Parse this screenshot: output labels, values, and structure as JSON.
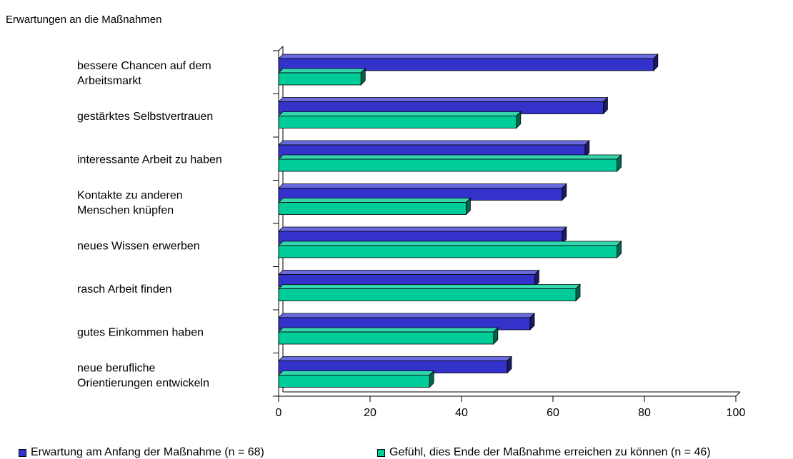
{
  "chart_data": {
    "type": "bar",
    "orientation": "horizontal",
    "title": "Erwartungen an die Maßnahmen",
    "categories": [
      [
        "bessere Chancen auf dem",
        "Arbeitsmarkt"
      ],
      [
        "gestärktes Selbstvertrauen"
      ],
      [
        "interessante Arbeit zu haben"
      ],
      [
        "Kontakte zu anderen",
        "Menschen knüpfen"
      ],
      [
        "neues Wissen erwerben"
      ],
      [
        "rasch Arbeit finden"
      ],
      [
        "gutes Einkommen haben"
      ],
      [
        "neue berufliche",
        "Orientierungen entwickeln"
      ]
    ],
    "series": [
      {
        "name": "Erwartung am Anfang der Maßnahme (n = 68)",
        "color": "#3333cc",
        "side_color": "#1a1a66",
        "top_color": "#6a6ae0",
        "values": [
          82,
          71,
          67,
          62,
          62,
          56,
          55,
          50
        ]
      },
      {
        "name": "Gefühl, dies Ende der Maßnahme erreichen zu können (n = 46)",
        "color": "#00cc99",
        "side_color": "#00664d",
        "top_color": "#33d6ad",
        "values": [
          18,
          52,
          74,
          41,
          74,
          65,
          47,
          33
        ]
      }
    ],
    "xlim": [
      0,
      100
    ],
    "xticks": [
      "0",
      "20",
      "40",
      "60",
      "80",
      "100"
    ],
    "grid": false,
    "legend_position": "bottom"
  }
}
